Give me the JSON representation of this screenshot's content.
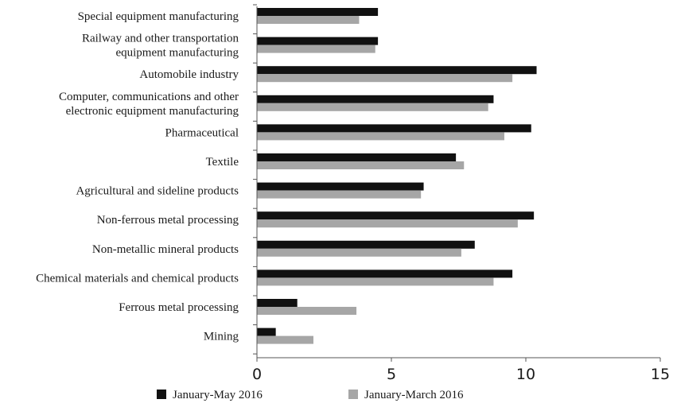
{
  "chart_data": {
    "type": "bar",
    "orientation": "horizontal",
    "title": "",
    "xlabel": "",
    "ylabel": "",
    "xlim": [
      0,
      15
    ],
    "xticks": [
      0,
      5,
      10,
      15
    ],
    "grid": false,
    "legend_position": "bottom",
    "categories": [
      [
        "Special equipment manufacturing"
      ],
      [
        "Railway and other transportation",
        "equipment manufacturing"
      ],
      [
        "Automobile industry"
      ],
      [
        "Computer, communications and other",
        "electronic equipment manufacturing"
      ],
      [
        "Pharmaceutical"
      ],
      [
        "Textile"
      ],
      [
        "Agricultural and sideline products"
      ],
      [
        "Non-ferrous metal processing"
      ],
      [
        "Non-metallic mineral products"
      ],
      [
        "Chemical materials and chemical products"
      ],
      [
        "Ferrous metal processing"
      ],
      [
        "Mining"
      ]
    ],
    "series": [
      {
        "name": "January-May 2016",
        "color": "#111111",
        "values": [
          4.5,
          4.5,
          10.4,
          8.8,
          10.2,
          7.4,
          6.2,
          10.3,
          8.1,
          9.5,
          1.5,
          0.7
        ]
      },
      {
        "name": "January-March 2016",
        "color": "#a6a6a6",
        "values": [
          3.8,
          4.4,
          9.5,
          8.6,
          9.2,
          7.7,
          6.1,
          9.7,
          7.6,
          8.8,
          3.7,
          2.1
        ]
      }
    ]
  }
}
